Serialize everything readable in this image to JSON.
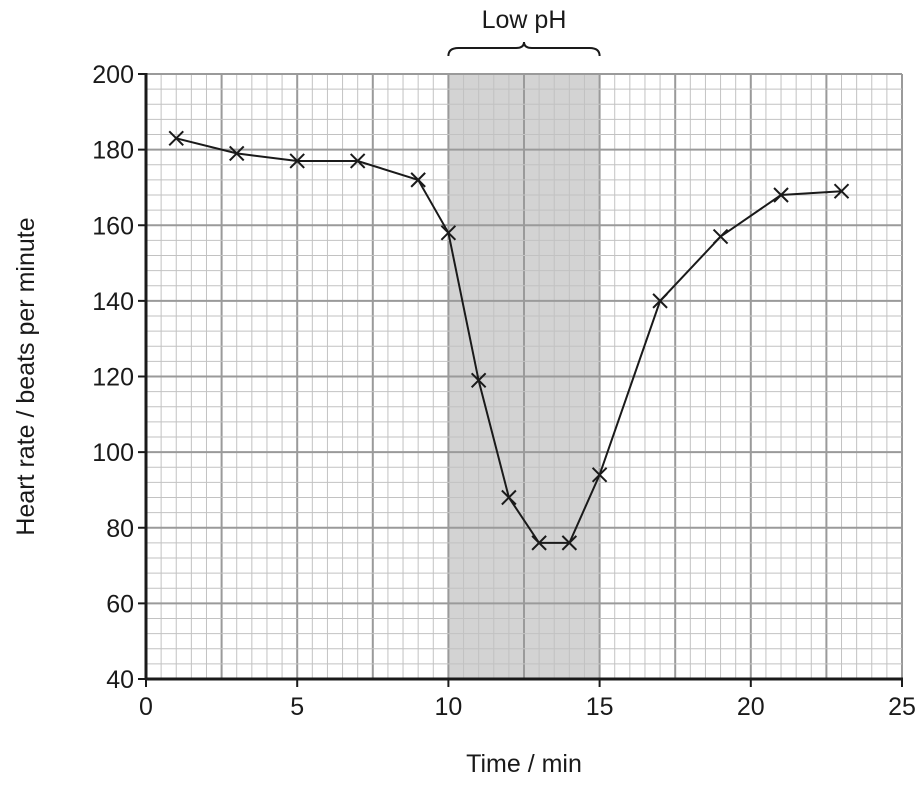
{
  "chart_data": {
    "type": "line",
    "xlabel": "Time / min",
    "ylabel": "Heart rate / beats per minute",
    "xlim": [
      0,
      25
    ],
    "ylim": [
      40,
      200
    ],
    "x_ticks": [
      "0",
      "5",
      "10",
      "15",
      "20",
      "25"
    ],
    "y_ticks": [
      "40",
      "60",
      "80",
      "100",
      "120",
      "140",
      "160",
      "180",
      "200"
    ],
    "grid": true,
    "shaded_region": {
      "label": "Low pH",
      "x_start": 10,
      "x_end": 15
    },
    "series": [
      {
        "marker": "x",
        "color": "#1a1a1a",
        "points": [
          {
            "x": 1,
            "y": 183
          },
          {
            "x": 3,
            "y": 179
          },
          {
            "x": 5,
            "y": 177
          },
          {
            "x": 7,
            "y": 177
          },
          {
            "x": 9,
            "y": 172
          },
          {
            "x": 10,
            "y": 158
          },
          {
            "x": 11,
            "y": 119
          },
          {
            "x": 12,
            "y": 88
          },
          {
            "x": 13,
            "y": 76
          },
          {
            "x": 14,
            "y": 76
          },
          {
            "x": 15,
            "y": 94
          },
          {
            "x": 17,
            "y": 140
          },
          {
            "x": 19,
            "y": 157
          },
          {
            "x": 21,
            "y": 168
          },
          {
            "x": 23,
            "y": 169
          }
        ]
      }
    ]
  },
  "colors": {
    "shade": "#d3d3d3",
    "grid_major": "#9a9a9a",
    "grid_minor": "#c2c2c2",
    "axis": "#1a1a1a",
    "line": "#1a1a1a"
  }
}
